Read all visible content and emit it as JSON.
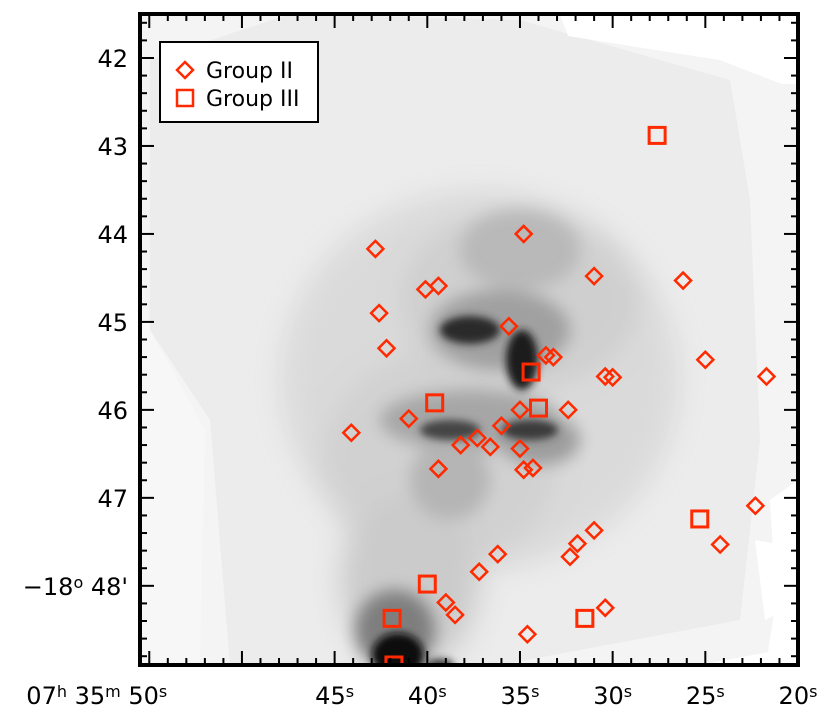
{
  "chart_data": {
    "type": "scatter",
    "title": "",
    "xlabel": "",
    "ylabel": "",
    "x_axis_units": "seconds of right ascension (07h 35m)",
    "y_axis_units": "arcminutes of declination (-18 deg)",
    "xlim": [
      55.5,
      20.0
    ],
    "ylim": [
      48.9,
      41.5
    ],
    "x_ticks": [
      {
        "value": 55,
        "labels": [
          {
            "text": "07",
            "type": "n"
          },
          {
            "text": "h",
            "type": "s"
          },
          {
            "text": " 35",
            "type": "n"
          },
          {
            "text": "m",
            "type": "s"
          },
          {
            "text": " 50",
            "type": "n"
          },
          {
            "text": "s",
            "type": "s"
          }
        ]
      },
      {
        "value": 45,
        "labels": [
          {
            "text": "45",
            "type": "n"
          },
          {
            "text": "s",
            "type": "s"
          }
        ]
      },
      {
        "value": 40,
        "labels": [
          {
            "text": "40",
            "type": "n"
          },
          {
            "text": "s",
            "type": "s"
          }
        ]
      },
      {
        "value": 35,
        "labels": [
          {
            "text": "35",
            "type": "n"
          },
          {
            "text": "s",
            "type": "s"
          }
        ]
      },
      {
        "value": 30,
        "labels": [
          {
            "text": "30",
            "type": "n"
          },
          {
            "text": "s",
            "type": "s"
          }
        ]
      },
      {
        "value": 25,
        "labels": [
          {
            "text": "25",
            "type": "n"
          },
          {
            "text": "s",
            "type": "s"
          }
        ]
      },
      {
        "value": 20,
        "labels": [
          {
            "text": "20",
            "type": "n"
          },
          {
            "text": "s",
            "type": "s"
          }
        ]
      }
    ],
    "y_ticks": [
      {
        "value": 42,
        "labels": [
          {
            "text": "42",
            "type": "n"
          }
        ]
      },
      {
        "value": 43,
        "labels": [
          {
            "text": "43",
            "type": "n"
          }
        ]
      },
      {
        "value": 44,
        "labels": [
          {
            "text": "44",
            "type": "n"
          }
        ]
      },
      {
        "value": 45,
        "labels": [
          {
            "text": "45",
            "type": "n"
          }
        ]
      },
      {
        "value": 46,
        "labels": [
          {
            "text": "46",
            "type": "n"
          }
        ]
      },
      {
        "value": 47,
        "labels": [
          {
            "text": "47",
            "type": "n"
          }
        ]
      },
      {
        "value": 48,
        "labels": [
          {
            "text": "−18",
            "type": "n"
          },
          {
            "text": "o",
            "type": "s"
          },
          {
            "text": " 48'",
            "type": "n"
          }
        ]
      }
    ],
    "legend": {
      "position": "top-left"
    },
    "background": "grayscale nebula image (inverted)",
    "series": [
      {
        "name": "Group II",
        "marker": "diamond",
        "color": "#ff2a00",
        "points": [
          [
            42.8,
            44.17
          ],
          [
            34.8,
            44.0
          ],
          [
            31.0,
            44.48
          ],
          [
            26.2,
            44.53
          ],
          [
            40.1,
            44.63
          ],
          [
            39.4,
            44.59
          ],
          [
            42.6,
            44.9
          ],
          [
            35.6,
            45.05
          ],
          [
            42.2,
            45.3
          ],
          [
            33.6,
            45.38
          ],
          [
            33.2,
            45.4
          ],
          [
            30.4,
            45.62
          ],
          [
            30.0,
            45.63
          ],
          [
            25.0,
            45.43
          ],
          [
            21.7,
            45.62
          ],
          [
            44.1,
            46.26
          ],
          [
            41.0,
            46.1
          ],
          [
            36.0,
            46.18
          ],
          [
            35.0,
            46.0
          ],
          [
            32.4,
            46.0
          ],
          [
            38.2,
            46.4
          ],
          [
            37.3,
            46.32
          ],
          [
            36.6,
            46.42
          ],
          [
            35.0,
            46.44
          ],
          [
            34.8,
            46.68
          ],
          [
            34.3,
            46.66
          ],
          [
            39.4,
            46.67
          ],
          [
            31.0,
            47.37
          ],
          [
            31.9,
            47.52
          ],
          [
            32.3,
            47.67
          ],
          [
            36.2,
            47.64
          ],
          [
            37.2,
            47.84
          ],
          [
            24.2,
            47.53
          ],
          [
            22.3,
            47.09
          ],
          [
            39.0,
            48.19
          ],
          [
            38.5,
            48.33
          ],
          [
            30.4,
            48.25
          ],
          [
            34.6,
            48.55
          ]
        ]
      },
      {
        "name": "Group III",
        "marker": "square",
        "color": "#ff2a00",
        "points": [
          [
            27.6,
            42.88
          ],
          [
            34.4,
            45.57
          ],
          [
            34.0,
            45.98
          ],
          [
            39.6,
            45.92
          ],
          [
            25.3,
            47.24
          ],
          [
            40.0,
            47.98
          ],
          [
            41.9,
            48.37
          ],
          [
            31.5,
            48.37
          ],
          [
            41.8,
            48.9
          ]
        ]
      }
    ]
  }
}
